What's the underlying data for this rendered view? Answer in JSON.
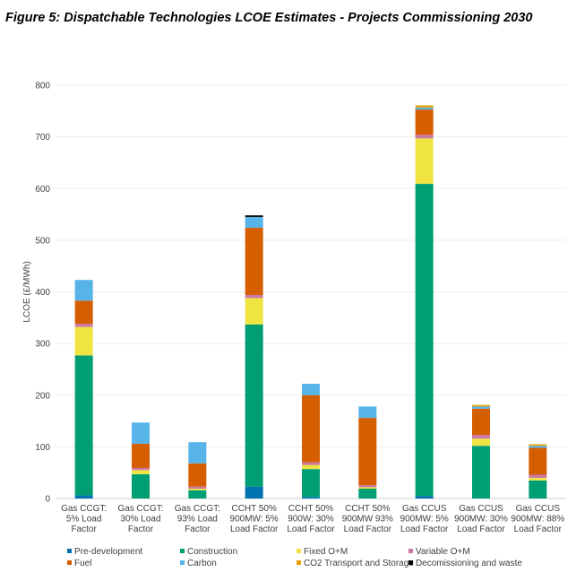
{
  "chart_data": {
    "type": "bar",
    "stacked": true,
    "title": "Figure 5: Dispatchable Technologies LCOE Estimates - Projects Commissioning 2030",
    "xlabel": "",
    "ylabel": "LCOE (£/MWh)",
    "ylim": [
      0,
      800
    ],
    "yticks": [
      0,
      100,
      200,
      300,
      400,
      500,
      600,
      700,
      800
    ],
    "grid": true,
    "legend_position": "bottom",
    "categories": [
      [
        "Gas CCGT:",
        "5% Load",
        "Factor"
      ],
      [
        "Gas CCGT:",
        "30% Load",
        "Factor"
      ],
      [
        "Gas CCGT:",
        "93% Load",
        "Factor"
      ],
      [
        "CCHT 50%",
        "900MW: 5%",
        "Load Factor"
      ],
      [
        "CCHT 50%",
        "900W: 30%",
        "Load Factor"
      ],
      [
        "CCHT 50%",
        "900MW 93%",
        "Load Factor"
      ],
      [
        "Gas CCUS",
        "900MW: 5%",
        "Load Factor"
      ],
      [
        "Gas CCUS",
        "900MW: 30%",
        "Load Factor"
      ],
      [
        "Gas CCUS",
        "900MW: 88%",
        "Load Factor"
      ]
    ],
    "series": [
      {
        "name": "Pre-development",
        "color": "#0072B2",
        "values": [
          6,
          0,
          0,
          23,
          3,
          0,
          5,
          0,
          0
        ]
      },
      {
        "name": "Construction",
        "color": "#009E73",
        "values": [
          271,
          47,
          16,
          314,
          54,
          19,
          604,
          102,
          35
        ]
      },
      {
        "name": "Fixed O+M",
        "color": "#F0E442",
        "values": [
          55,
          8,
          3,
          51,
          8,
          3,
          88,
          14,
          5
        ]
      },
      {
        "name": "Variable O+M",
        "color": "#CC79A7",
        "values": [
          6,
          4,
          4,
          6,
          5,
          4,
          7,
          7,
          6
        ]
      },
      {
        "name": "Fuel",
        "color": "#D55E00",
        "values": [
          45,
          47,
          45,
          130,
          130,
          130,
          49,
          51,
          52
        ]
      },
      {
        "name": "Carbon",
        "color": "#56B4E9",
        "values": [
          40,
          41,
          41,
          21,
          22,
          22,
          4,
          4,
          4
        ]
      },
      {
        "name": "CO2 Transport and Storage",
        "color": "#E69F00",
        "values": [
          0,
          0,
          0,
          0,
          0,
          0,
          4,
          3,
          3
        ]
      },
      {
        "name": "Decomissioning and waste",
        "color": "#000000",
        "values": [
          0,
          0,
          0,
          3,
          0,
          0,
          0,
          0,
          0
        ]
      }
    ]
  }
}
